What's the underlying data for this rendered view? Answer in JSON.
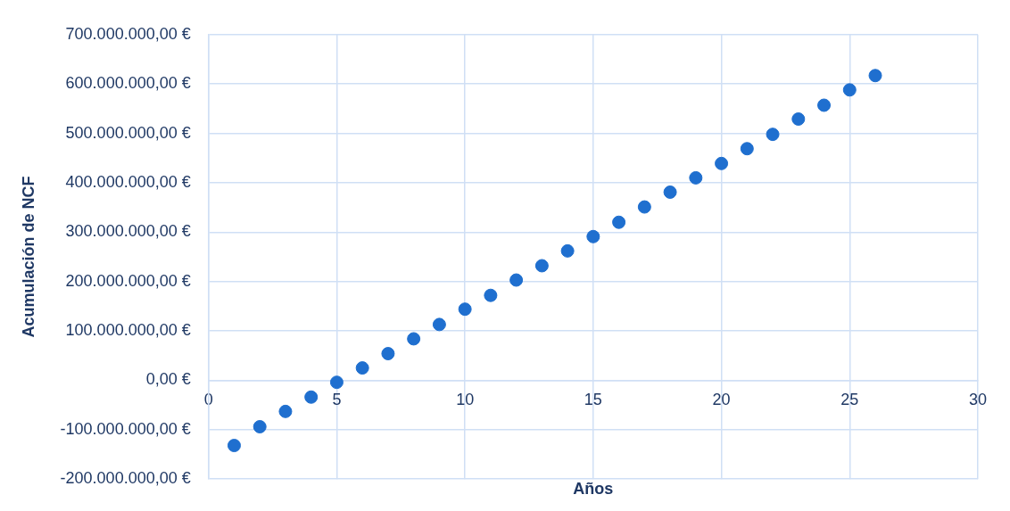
{
  "chart_data": {
    "type": "scatter",
    "xlabel": "Años",
    "ylabel": "Acumulación de NCF",
    "x": [
      1,
      2,
      3,
      4,
      5,
      6,
      7,
      8,
      9,
      10,
      11,
      12,
      13,
      14,
      15,
      16,
      17,
      18,
      19,
      20,
      21,
      22,
      23,
      24,
      25,
      26
    ],
    "series": [
      {
        "color": "#1f6fcf",
        "values": [
          -132000000,
          -94000000,
          -63000000,
          -34000000,
          -4000000,
          25000000,
          54000000,
          84000000,
          113000000,
          144000000,
          172000000,
          203000000,
          232000000,
          262000000,
          291000000,
          320000000,
          351000000,
          381000000,
          410000000,
          439000000,
          469000000,
          498000000,
          529000000,
          557000000,
          588000000,
          617000000
        ]
      }
    ],
    "xlim": [
      0,
      30
    ],
    "xticks": [
      0,
      5,
      10,
      15,
      20,
      25,
      30
    ],
    "ylim": [
      -200000000,
      700000000
    ],
    "yticks": [
      {
        "value": -200000000,
        "label": "-200.000.000,00 €"
      },
      {
        "value": -100000000,
        "label": "-100.000.000,00 €"
      },
      {
        "value": 0,
        "label": "0,00 €"
      },
      {
        "value": 100000000,
        "label": "100.000.000,00 €"
      },
      {
        "value": 200000000,
        "label": "200.000.000,00 €"
      },
      {
        "value": 300000000,
        "label": "300.000.000,00 €"
      },
      {
        "value": 400000000,
        "label": "400.000.000,00 €"
      },
      {
        "value": 500000000,
        "label": "500.000.000,00 €"
      },
      {
        "value": 600000000,
        "label": "600.000.000,00 €"
      },
      {
        "value": 700000000,
        "label": "700.000.000,00 €"
      }
    ],
    "grid": true,
    "marker": "circle",
    "legend": false
  }
}
